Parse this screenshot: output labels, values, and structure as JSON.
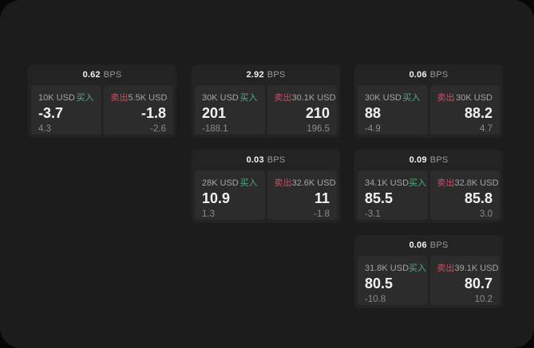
{
  "colors": {
    "window_bg": "#1c1c1c",
    "card_bg": "#232323",
    "panel_bg": "#2c2c2c",
    "buy_green": "#4caf7e",
    "sell_red": "#c84f63",
    "label_gray": "#a5a5a5",
    "sub_gray": "#8b8b8b",
    "bps_gray": "#9a9a9a"
  },
  "labels": {
    "buy": "买入",
    "sell": "卖出",
    "bps": "BPS"
  },
  "cards": [
    {
      "bps": "0.62",
      "buy": {
        "amount": "10K USD",
        "value": "-3.7",
        "sub": "4.3"
      },
      "sell": {
        "amount": "5.5K USD",
        "value": "-1.8",
        "sub": "-2.6"
      }
    },
    {
      "bps": "2.92",
      "buy": {
        "amount": "30K USD",
        "value": "201",
        "sub": "-188.1"
      },
      "sell": {
        "amount": "30.1K USD",
        "value": "210",
        "sub": "196.5"
      }
    },
    {
      "bps": "0.06",
      "buy": {
        "amount": "30K USD",
        "value": "88",
        "sub": "-4.9"
      },
      "sell": {
        "amount": "30K USD",
        "value": "88.2",
        "sub": "4.7"
      }
    },
    {
      "bps": "0.03",
      "buy": {
        "amount": "28K USD",
        "value": "10.9",
        "sub": "1.3"
      },
      "sell": {
        "amount": "32.6K USD",
        "value": "11",
        "sub": "-1.8"
      }
    },
    {
      "bps": "0.09",
      "buy": {
        "amount": "34.1K USD",
        "value": "85.5",
        "sub": "-3.1"
      },
      "sell": {
        "amount": "32.8K USD",
        "value": "85.8",
        "sub": "3.0"
      }
    },
    {
      "bps": "0.06",
      "buy": {
        "amount": "31.8K USD",
        "value": "80.5",
        "sub": "-10.8"
      },
      "sell": {
        "amount": "39.1K USD",
        "value": "80.7",
        "sub": "10.2"
      }
    }
  ]
}
